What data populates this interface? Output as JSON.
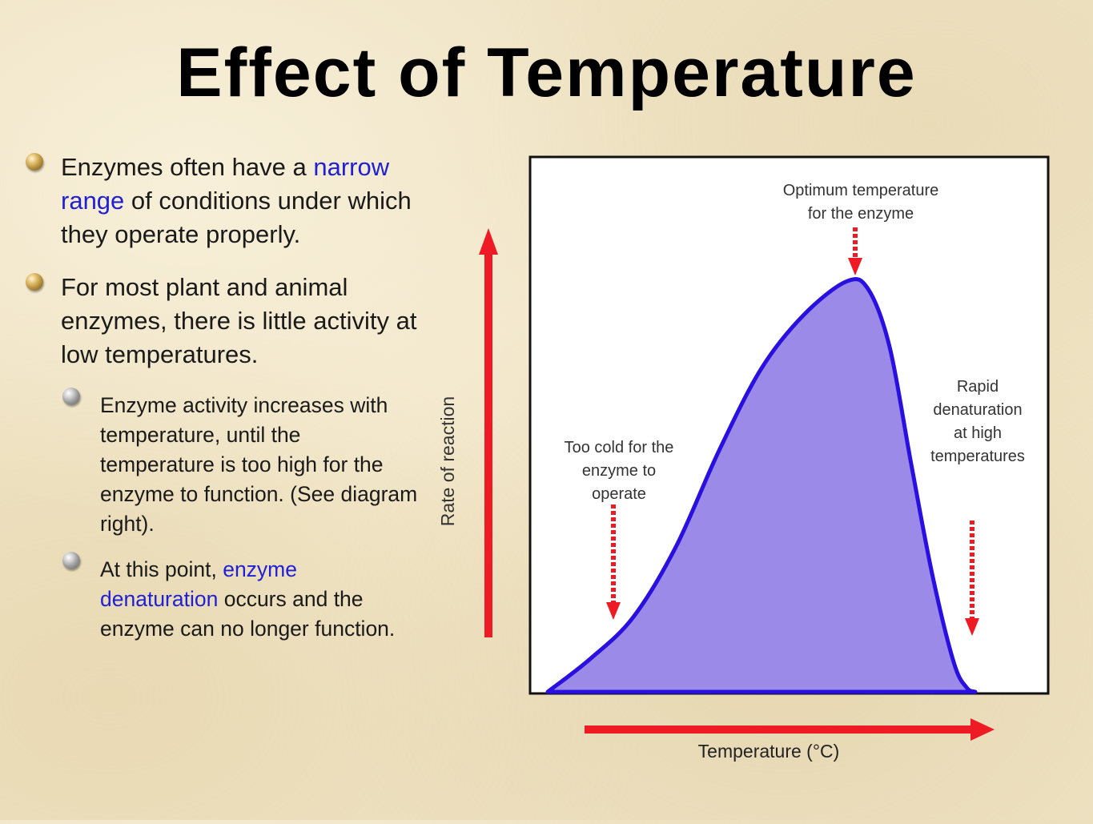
{
  "slide": {
    "title": "Effect of Temperature",
    "bullets": [
      {
        "level": 1,
        "parts": [
          {
            "text": "Enzymes often have a ",
            "highlight": false
          },
          {
            "text": "narrow range",
            "highlight": true
          },
          {
            "text": " of conditions under which they operate properly.",
            "highlight": false
          }
        ]
      },
      {
        "level": 1,
        "parts": [
          {
            "text": "For most plant and animal enzymes, there is little activity at low temperatures.",
            "highlight": false
          }
        ]
      },
      {
        "level": 2,
        "parts": [
          {
            "text": "Enzyme activity increases with temperature, until the temperature is too high for the enzyme to function. (See diagram right).",
            "highlight": false
          }
        ]
      },
      {
        "level": 2,
        "parts": [
          {
            "text": "At this point, ",
            "highlight": false
          },
          {
            "text": "enzyme denaturation",
            "highlight": true
          },
          {
            "text": " occurs and the enzyme can no longer function.",
            "highlight": false
          }
        ]
      }
    ],
    "colors": {
      "highlight": "#1f1fd6",
      "curve_fill": "#9b8ae8",
      "curve_stroke": "#2a10e0",
      "arrow": "#ee1a24"
    },
    "bullet_icons": [
      "bullet-orb-icon",
      "bullet-orb-icon",
      "bullet-sphere-icon",
      "bullet-sphere-icon"
    ]
  },
  "chart_data": {
    "type": "area",
    "title": "",
    "xlabel": "Temperature (°C)",
    "ylabel": "Rate of reaction",
    "grid": false,
    "legend": "none",
    "xlim": [
      0,
      100
    ],
    "ylim": [
      0,
      100
    ],
    "series": [
      {
        "x": [
          0,
          10,
          20,
          30,
          40,
          50,
          60,
          70,
          75,
          80,
          85,
          90,
          95,
          98,
          100
        ],
        "y": [
          0,
          8,
          18,
          35,
          58,
          78,
          91,
          99,
          97,
          83,
          55,
          28,
          7,
          1,
          0
        ]
      }
    ],
    "annotations": [
      {
        "text": "Optimum temperature\nfor the enzyme",
        "x": 71,
        "y": 100
      },
      {
        "text": "Too cold for the\nenzyme to\noperate",
        "x": 15,
        "y": 14
      },
      {
        "text": "Rapid\ndenaturation\nat high\ntemperatures",
        "x": 97,
        "y": 11
      }
    ]
  }
}
